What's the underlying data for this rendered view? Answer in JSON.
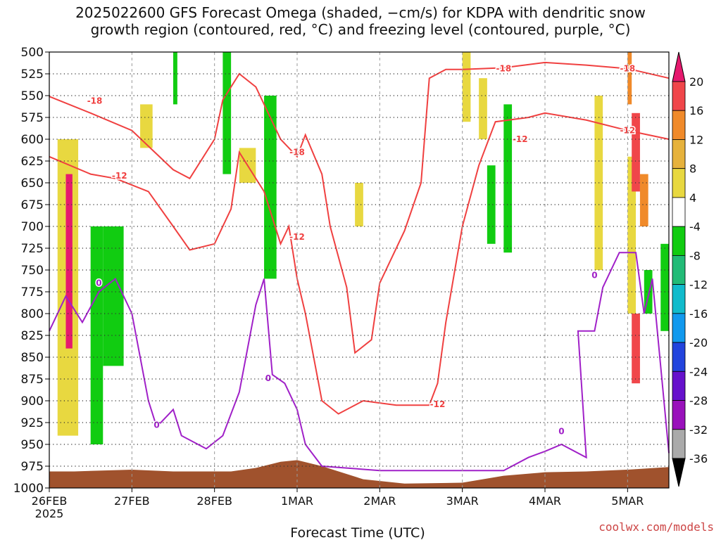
{
  "title_line1": "2025022600 GFS Forecast Omega (shaded, −cm/s) for KDPA with dendritic snow",
  "title_line2": "growth region (contoured, red, °C) and freezing level (contoured, purple, °C)",
  "credit": "coolwx.com/models",
  "chart_data": {
    "type": "heatmap",
    "xlabel": "Forecast Time (UTC)",
    "x_range_days": [
      0,
      7.5
    ],
    "x_ticks": [
      {
        "day": 0,
        "label": "26FEB",
        "sublabel": "2025"
      },
      {
        "day": 1,
        "label": "27FEB"
      },
      {
        "day": 2,
        "label": "28FEB"
      },
      {
        "day": 3,
        "label": "1MAR"
      },
      {
        "day": 4,
        "label": "2MAR"
      },
      {
        "day": 5,
        "label": "3MAR"
      },
      {
        "day": 6,
        "label": "4MAR"
      },
      {
        "day": 7,
        "label": "5MAR"
      }
    ],
    "ylabel": "",
    "y_range_hPa": [
      500,
      1000
    ],
    "y_ticks": [
      500,
      525,
      550,
      575,
      600,
      625,
      650,
      675,
      700,
      725,
      750,
      775,
      800,
      825,
      850,
      875,
      900,
      925,
      950,
      975,
      1000
    ],
    "grid": true,
    "colorbar": {
      "levels": [
        20,
        16,
        12,
        8,
        4,
        -4,
        -8,
        -12,
        -16,
        -20,
        -24,
        -28,
        -32,
        -36
      ],
      "colors": [
        "#e6196e",
        "#f0464a",
        "#f08a2a",
        "#e6b23c",
        "#e8d840",
        "#ffffff",
        "#11cc11",
        "#22bb77",
        "#11bbcc",
        "#1199ee",
        "#2244dd",
        "#6611cc",
        "#9911bb",
        "#aaaaaa",
        "#000000"
      ]
    },
    "contours": [
      {
        "color": "#f04040",
        "label": "-18",
        "label_at": [
          0.55,
          556,
          3.0,
          615,
          5.5,
          519,
          7.0,
          519
        ],
        "points": [
          [
            0,
            551
          ],
          [
            0.5,
            570
          ],
          [
            1.0,
            590
          ],
          [
            1.5,
            635
          ],
          [
            1.7,
            645
          ],
          [
            2.0,
            600
          ],
          [
            2.1,
            555
          ],
          [
            2.3,
            525
          ],
          [
            2.5,
            540
          ],
          [
            2.8,
            600
          ],
          [
            3.0,
            620
          ],
          [
            3.1,
            595
          ],
          [
            3.3,
            640
          ],
          [
            3.4,
            700
          ],
          [
            3.6,
            770
          ],
          [
            3.7,
            845
          ],
          [
            3.9,
            830
          ],
          [
            4.0,
            765
          ],
          [
            4.3,
            705
          ],
          [
            4.5,
            650
          ],
          [
            4.6,
            530
          ],
          [
            4.8,
            520
          ],
          [
            5.0,
            520
          ],
          [
            5.5,
            518
          ],
          [
            6.0,
            512
          ],
          [
            6.5,
            515
          ],
          [
            7.0,
            519
          ],
          [
            7.5,
            530
          ]
        ]
      },
      {
        "color": "#f04040",
        "label": "-12",
        "label_at": [
          0.85,
          642,
          3.0,
          712,
          5.7,
          600,
          7.0,
          590,
          4.7,
          904
        ],
        "points": [
          [
            0,
            620
          ],
          [
            0.5,
            640
          ],
          [
            0.8,
            645
          ],
          [
            1.2,
            660
          ],
          [
            1.5,
            700
          ],
          [
            1.7,
            727
          ],
          [
            2.0,
            720
          ],
          [
            2.2,
            680
          ],
          [
            2.3,
            615
          ],
          [
            2.6,
            660
          ],
          [
            2.8,
            720
          ],
          [
            2.9,
            700
          ],
          [
            3.0,
            760
          ],
          [
            3.1,
            800
          ],
          [
            3.3,
            900
          ],
          [
            3.5,
            915
          ],
          [
            3.8,
            900
          ],
          [
            4.2,
            905
          ],
          [
            4.6,
            905
          ],
          [
            4.7,
            880
          ],
          [
            4.8,
            810
          ],
          [
            5.0,
            700
          ],
          [
            5.2,
            630
          ],
          [
            5.4,
            580
          ],
          [
            5.8,
            575
          ],
          [
            6.0,
            570
          ],
          [
            6.5,
            578
          ],
          [
            7.0,
            590
          ],
          [
            7.5,
            600
          ]
        ]
      },
      {
        "color": "#a020c8",
        "label": "0",
        "label_at": [
          0.6,
          765,
          1.3,
          928,
          2.65,
          874,
          6.2,
          935,
          6.6,
          756
        ],
        "points": [
          [
            0,
            820
          ],
          [
            0.2,
            780
          ],
          [
            0.4,
            810
          ],
          [
            0.6,
            775
          ],
          [
            0.8,
            760
          ],
          [
            1.0,
            800
          ],
          [
            1.2,
            900
          ],
          [
            1.3,
            930
          ],
          [
            1.5,
            910
          ],
          [
            1.6,
            940
          ],
          [
            1.9,
            955
          ],
          [
            2.1,
            940
          ],
          [
            2.3,
            890
          ],
          [
            2.5,
            790
          ],
          [
            2.6,
            760
          ],
          [
            2.7,
            870
          ],
          [
            2.85,
            880
          ],
          [
            3.0,
            910
          ],
          [
            3.1,
            950
          ],
          [
            3.3,
            975
          ],
          [
            4.0,
            980
          ],
          [
            5.5,
            980
          ],
          [
            5.8,
            965
          ],
          [
            6.0,
            958
          ],
          [
            6.2,
            950
          ],
          [
            6.5,
            965
          ],
          [
            6.4,
            820
          ],
          [
            6.6,
            820
          ],
          [
            6.7,
            770
          ],
          [
            6.9,
            730
          ],
          [
            7.1,
            730
          ],
          [
            7.2,
            800
          ],
          [
            7.3,
            760
          ],
          [
            7.5,
            960
          ]
        ]
      }
    ],
    "shaded_regions": [
      {
        "color": "#e8d840",
        "bounds": [
          [
            0.1,
            600,
            0.35,
            940
          ],
          [
            1.1,
            560,
            1.25,
            610
          ],
          [
            2.3,
            610,
            2.5,
            650
          ],
          [
            3.7,
            650,
            3.8,
            700
          ],
          [
            5.0,
            500,
            5.1,
            580
          ],
          [
            5.2,
            530,
            5.3,
            600
          ],
          [
            6.6,
            550,
            6.7,
            750
          ],
          [
            7.0,
            620,
            7.1,
            800
          ]
        ]
      },
      {
        "color": "#e6196e",
        "bounds": [
          [
            0.2,
            640,
            0.28,
            840
          ]
        ]
      },
      {
        "color": "#11cc11",
        "bounds": [
          [
            0.5,
            700,
            0.65,
            950
          ],
          [
            0.65,
            700,
            0.9,
            860
          ],
          [
            1.5,
            500,
            1.55,
            560
          ],
          [
            2.1,
            500,
            2.2,
            640
          ],
          [
            2.6,
            550,
            2.75,
            760
          ],
          [
            5.3,
            630,
            5.4,
            720
          ],
          [
            5.5,
            560,
            5.6,
            730
          ],
          [
            7.4,
            720,
            7.5,
            820
          ],
          [
            7.2,
            750,
            7.3,
            800
          ]
        ]
      },
      {
        "color": "#f0464a",
        "bounds": [
          [
            7.05,
            570,
            7.15,
            660
          ],
          [
            7.05,
            800,
            7.15,
            880
          ]
        ]
      },
      {
        "color": "#f08a2a",
        "bounds": [
          [
            7.15,
            640,
            7.25,
            700
          ],
          [
            7.0,
            500,
            7.05,
            560
          ]
        ]
      }
    ],
    "terrain": {
      "color": "#a0522d",
      "surface_hPa": [
        [
          0,
          981
        ],
        [
          0.3,
          981
        ],
        [
          1.0,
          979
        ],
        [
          1.5,
          981
        ],
        [
          2.2,
          981
        ],
        [
          2.5,
          977
        ],
        [
          2.8,
          970
        ],
        [
          3.0,
          968
        ],
        [
          3.3,
          975
        ],
        [
          3.8,
          990
        ],
        [
          4.3,
          995
        ],
        [
          5.0,
          994
        ],
        [
          5.5,
          986
        ],
        [
          6.0,
          982
        ],
        [
          6.5,
          981
        ],
        [
          7.0,
          979
        ],
        [
          7.5,
          976
        ]
      ]
    }
  }
}
